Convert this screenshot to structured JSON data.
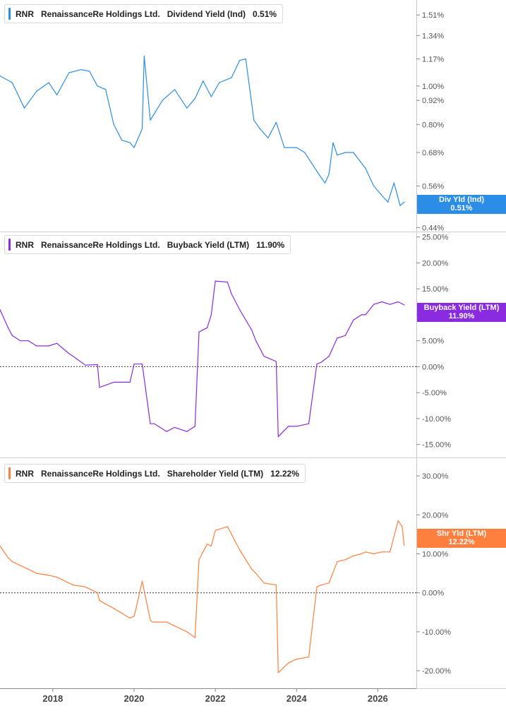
{
  "chart_data": [
    {
      "type": "line",
      "ticker": "RNR",
      "company": "RenaissanceRe Holdings Ltd.",
      "metric": "Dividend Yield (Ind)",
      "current_value": "0.51%",
      "badge": {
        "line1": "Div Yld (Ind)",
        "line2": "0.51%"
      },
      "color": "#2b8de6",
      "y_scale": "log",
      "ylim": [
        0.43,
        1.62
      ],
      "yticks": [
        0.44,
        0.56,
        0.68,
        0.8,
        0.92,
        1.0,
        1.17,
        1.34,
        1.51
      ],
      "ytick_labels": [
        "0.44%",
        "0.56%",
        "0.68%",
        "0.80%",
        "0.92%",
        "1.00%",
        "1.17%",
        "1.34%",
        "1.51%"
      ],
      "zero_line": false,
      "x": [
        2016.7,
        2017.0,
        2017.3,
        2017.6,
        2017.9,
        2018.1,
        2018.4,
        2018.7,
        2018.9,
        2019.1,
        2019.3,
        2019.5,
        2019.7,
        2019.9,
        2020.0,
        2020.2,
        2020.25,
        2020.4,
        2020.7,
        2021.0,
        2021.3,
        2021.5,
        2021.7,
        2021.9,
        2022.1,
        2022.4,
        2022.6,
        2022.75,
        2022.85,
        2022.95,
        2023.1,
        2023.3,
        2023.5,
        2023.7,
        2024.0,
        2024.2,
        2024.5,
        2024.7,
        2024.8,
        2024.9,
        2025.0,
        2025.2,
        2025.4,
        2025.7,
        2025.9,
        2026.1,
        2026.25,
        2026.4,
        2026.55,
        2026.65
      ],
      "values": [
        1.06,
        1.02,
        0.88,
        0.97,
        1.02,
        0.95,
        1.08,
        1.1,
        1.09,
        1.0,
        0.98,
        0.8,
        0.73,
        0.72,
        0.7,
        0.78,
        1.19,
        0.82,
        0.92,
        0.98,
        0.88,
        0.93,
        1.03,
        0.94,
        1.02,
        1.05,
        1.16,
        1.17,
        0.98,
        0.82,
        0.78,
        0.74,
        0.81,
        0.7,
        0.7,
        0.68,
        0.61,
        0.57,
        0.6,
        0.72,
        0.67,
        0.68,
        0.68,
        0.62,
        0.56,
        0.53,
        0.51,
        0.57,
        0.5,
        0.51
      ]
    },
    {
      "type": "line",
      "ticker": "RNR",
      "company": "RenaissanceRe Holdings Ltd.",
      "metric": "Buyback Yield (LTM)",
      "current_value": "11.90%",
      "badge": {
        "line1": "Buyback Yield (LTM)",
        "line2": "11.90%"
      },
      "color": "#8a2be2",
      "y_scale": "linear",
      "ylim": [
        -17.5,
        25.5
      ],
      "yticks": [
        -15,
        -10,
        -5,
        0,
        5,
        10,
        15,
        20,
        25
      ],
      "ytick_labels": [
        "-15.00%",
        "-10.00%",
        "-5.00%",
        "0.00%",
        "5.00%",
        "10.00%",
        "15.00%",
        "20.00%",
        "25.00%"
      ],
      "zero_line": true,
      "x": [
        2016.7,
        2016.9,
        2017.0,
        2017.2,
        2017.4,
        2017.6,
        2017.9,
        2018.1,
        2018.4,
        2018.5,
        2018.8,
        2019.1,
        2019.15,
        2019.5,
        2019.9,
        2020.0,
        2020.2,
        2020.4,
        2020.5,
        2020.8,
        2021.0,
        2021.3,
        2021.5,
        2021.6,
        2021.8,
        2021.9,
        2022.0,
        2022.3,
        2022.4,
        2022.6,
        2022.9,
        2023.0,
        2023.2,
        2023.5,
        2023.55,
        2023.8,
        2024.0,
        2024.3,
        2024.5,
        2024.6,
        2024.8,
        2025.0,
        2025.2,
        2025.4,
        2025.6,
        2025.7,
        2025.9,
        2026.1,
        2026.3,
        2026.5,
        2026.65
      ],
      "values": [
        11,
        7.5,
        6,
        5,
        5,
        4,
        4,
        4.5,
        2.5,
        2,
        0.3,
        0.4,
        -4,
        -3,
        -3,
        0.5,
        0.5,
        -11,
        -11,
        -12.5,
        -11.7,
        -12.5,
        -11.5,
        6.7,
        7.5,
        10,
        16.5,
        16.3,
        14,
        11,
        7,
        5,
        2,
        1,
        -13.5,
        -11.5,
        -11.5,
        -11,
        0.5,
        0.8,
        2,
        5.5,
        6,
        9,
        10,
        10,
        12,
        12.5,
        12,
        12.5,
        11.9
      ]
    },
    {
      "type": "line",
      "ticker": "RNR",
      "company": "RenaissanceRe Holdings Ltd.",
      "metric": "Shareholder Yield (LTM)",
      "current_value": "12.22%",
      "badge": {
        "line1": "Shr Yld (LTM)",
        "line2": "12.22%"
      },
      "color": "#ff7f3f",
      "y_scale": "linear",
      "ylim": [
        -24.5,
        34
      ],
      "yticks": [
        -20,
        -10,
        0,
        10,
        20,
        30
      ],
      "ytick_labels": [
        "-20.00%",
        "-10.00%",
        "0.00%",
        "10.00%",
        "20.00%",
        "30.00%"
      ],
      "zero_line": true,
      "x": [
        2016.7,
        2016.9,
        2017.0,
        2017.2,
        2017.4,
        2017.6,
        2017.9,
        2018.1,
        2018.4,
        2018.5,
        2018.8,
        2019.1,
        2019.15,
        2019.5,
        2019.9,
        2020.0,
        2020.05,
        2020.2,
        2020.4,
        2020.45,
        2020.8,
        2021.0,
        2021.3,
        2021.5,
        2021.6,
        2021.8,
        2021.9,
        2022.0,
        2022.3,
        2022.4,
        2022.6,
        2022.9,
        2023.0,
        2023.2,
        2023.5,
        2023.55,
        2023.8,
        2024.0,
        2024.3,
        2024.5,
        2024.6,
        2024.8,
        2025.0,
        2025.2,
        2025.4,
        2025.6,
        2025.7,
        2025.9,
        2026.1,
        2026.3,
        2026.5,
        2026.6,
        2026.65
      ],
      "values": [
        12,
        9,
        8,
        7,
        6,
        5,
        4.5,
        4,
        2.5,
        2,
        1.5,
        0,
        -2,
        -4,
        -6.5,
        -6,
        -4,
        3,
        -7,
        -7.5,
        -7.5,
        -8.5,
        -10,
        -11.5,
        8.5,
        12.5,
        12,
        16,
        17,
        15,
        11,
        6,
        5,
        2.5,
        2,
        -20.5,
        -18,
        -17,
        -16.5,
        1.5,
        2,
        2.5,
        8,
        8.5,
        9.5,
        10,
        10.5,
        10,
        10.5,
        10.5,
        18.5,
        17,
        12.2
      ]
    }
  ],
  "x_axis": {
    "xlim": [
      2016.7,
      2026.95
    ],
    "ticks": [
      2018,
      2020,
      2022,
      2024,
      2026
    ],
    "tick_labels": [
      "2018",
      "2020",
      "2022",
      "2024",
      "2026"
    ]
  }
}
